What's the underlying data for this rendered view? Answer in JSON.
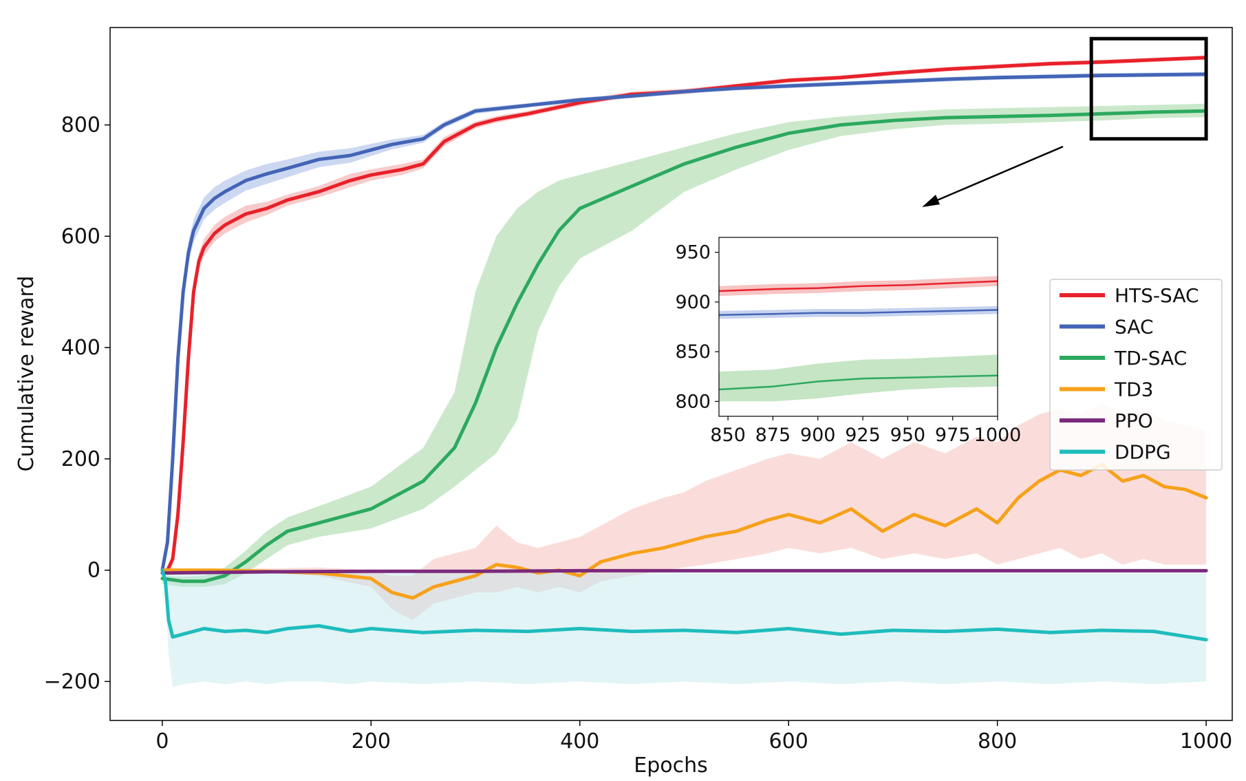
{
  "chart_data": {
    "type": "line",
    "title": "",
    "xlabel": "Epochs",
    "ylabel": "Cumulative reward",
    "xlim": [
      -50,
      1025
    ],
    "ylim": [
      -270,
      975
    ],
    "xticks": [
      0,
      200,
      400,
      600,
      800,
      1000
    ],
    "yticks": [
      -200,
      0,
      200,
      400,
      600,
      800
    ],
    "xtick_labels": [
      "0",
      "200",
      "400",
      "600",
      "800",
      "1000"
    ],
    "ytick_labels": [
      "−200",
      "0",
      "200",
      "400",
      "600",
      "800"
    ],
    "grid": false,
    "legend_position": "right",
    "series": [
      {
        "name": "HTS-SAC",
        "color": "#e8212a",
        "band_color": "#f08a8a",
        "x": [
          0,
          5,
          10,
          15,
          20,
          25,
          30,
          35,
          40,
          50,
          60,
          80,
          100,
          120,
          150,
          180,
          200,
          230,
          250,
          270,
          300,
          320,
          350,
          400,
          450,
          500,
          550,
          600,
          650,
          700,
          750,
          800,
          850,
          900,
          950,
          1000
        ],
        "y": [
          0,
          0,
          20,
          100,
          230,
          380,
          500,
          555,
          580,
          605,
          620,
          640,
          650,
          665,
          680,
          700,
          710,
          720,
          730,
          770,
          800,
          810,
          820,
          840,
          855,
          860,
          870,
          880,
          885,
          893,
          900,
          905,
          910,
          913,
          917,
          921
        ],
        "upper": [
          0,
          5,
          30,
          115,
          250,
          400,
          520,
          570,
          595,
          620,
          635,
          655,
          662,
          675,
          690,
          712,
          720,
          730,
          738,
          778,
          806,
          816,
          825,
          845,
          860,
          865,
          874,
          884,
          889,
          897,
          904,
          909,
          914,
          917,
          921,
          925
        ],
        "lower": [
          0,
          -5,
          10,
          85,
          210,
          360,
          480,
          540,
          565,
          590,
          605,
          625,
          638,
          655,
          670,
          688,
          700,
          710,
          722,
          762,
          794,
          804,
          815,
          835,
          850,
          855,
          866,
          876,
          881,
          889,
          896,
          901,
          906,
          909,
          913,
          917
        ]
      },
      {
        "name": "SAC",
        "color": "#4364b6",
        "band_color": "#8fa8df",
        "x": [
          0,
          5,
          10,
          15,
          20,
          25,
          30,
          35,
          40,
          50,
          60,
          80,
          100,
          120,
          150,
          180,
          200,
          220,
          250,
          270,
          300,
          350,
          400,
          450,
          500,
          550,
          600,
          650,
          700,
          750,
          800,
          850,
          900,
          950,
          1000
        ],
        "y": [
          0,
          50,
          200,
          380,
          500,
          570,
          610,
          630,
          650,
          668,
          680,
          700,
          712,
          722,
          738,
          745,
          755,
          765,
          775,
          800,
          825,
          835,
          845,
          852,
          860,
          866,
          870,
          874,
          878,
          882,
          885,
          887,
          889,
          890,
          891
        ],
        "upper": [
          0,
          60,
          220,
          400,
          520,
          590,
          630,
          650,
          670,
          688,
          700,
          718,
          730,
          738,
          752,
          758,
          766,
          774,
          782,
          806,
          830,
          839,
          849,
          856,
          864,
          870,
          874,
          878,
          882,
          886,
          889,
          891,
          893,
          894,
          895
        ],
        "lower": [
          0,
          40,
          180,
          360,
          480,
          550,
          590,
          610,
          630,
          648,
          660,
          682,
          694,
          706,
          724,
          732,
          744,
          756,
          768,
          794,
          820,
          831,
          841,
          848,
          856,
          862,
          866,
          870,
          874,
          878,
          881,
          883,
          885,
          886,
          887
        ]
      },
      {
        "name": "TD-SAC",
        "color": "#2ca95f",
        "band_color": "#8ccc8c",
        "x": [
          0,
          20,
          40,
          60,
          80,
          100,
          120,
          150,
          200,
          250,
          280,
          300,
          320,
          340,
          360,
          380,
          400,
          450,
          500,
          550,
          600,
          650,
          700,
          750,
          800,
          850,
          900,
          950,
          1000
        ],
        "y": [
          -15,
          -20,
          -20,
          -10,
          15,
          45,
          70,
          85,
          110,
          160,
          220,
          300,
          400,
          480,
          550,
          610,
          650,
          690,
          730,
          760,
          785,
          800,
          808,
          813,
          815,
          817,
          820,
          823,
          825
        ],
        "upper": [
          -10,
          -12,
          -10,
          5,
          35,
          70,
          95,
          115,
          150,
          220,
          320,
          500,
          600,
          650,
          680,
          700,
          710,
          735,
          760,
          785,
          805,
          815,
          822,
          828,
          830,
          832,
          834,
          836,
          838
        ],
        "lower": [
          -25,
          -30,
          -30,
          -25,
          -5,
          20,
          45,
          60,
          75,
          110,
          150,
          180,
          210,
          270,
          430,
          510,
          560,
          610,
          680,
          720,
          755,
          780,
          792,
          800,
          802,
          805,
          808,
          812,
          814
        ]
      },
      {
        "name": "TD3",
        "color": "#f7a11a",
        "band_color": "#f4b4ac",
        "x": [
          0,
          50,
          100,
          150,
          200,
          220,
          240,
          260,
          280,
          300,
          320,
          340,
          360,
          380,
          400,
          420,
          450,
          480,
          500,
          520,
          550,
          580,
          600,
          630,
          660,
          690,
          720,
          750,
          780,
          800,
          820,
          840,
          860,
          880,
          900,
          920,
          940,
          960,
          980,
          1000
        ],
        "y": [
          0,
          0,
          -2,
          -5,
          -15,
          -40,
          -50,
          -30,
          -20,
          -10,
          10,
          5,
          -5,
          0,
          -10,
          15,
          30,
          40,
          50,
          60,
          70,
          90,
          100,
          85,
          110,
          70,
          100,
          80,
          110,
          85,
          130,
          160,
          180,
          170,
          190,
          160,
          170,
          150,
          145,
          130
        ],
        "upper": [
          0,
          2,
          3,
          5,
          0,
          -10,
          -10,
          20,
          30,
          40,
          80,
          50,
          40,
          50,
          60,
          80,
          110,
          130,
          140,
          160,
          180,
          200,
          210,
          200,
          230,
          200,
          230,
          210,
          240,
          230,
          260,
          280,
          290,
          280,
          300,
          280,
          290,
          270,
          260,
          250
        ],
        "lower": [
          0,
          -2,
          -5,
          -10,
          -30,
          -70,
          -90,
          -60,
          -50,
          -40,
          -40,
          -30,
          -40,
          -30,
          -40,
          -20,
          -10,
          0,
          5,
          10,
          20,
          30,
          40,
          30,
          40,
          20,
          30,
          20,
          30,
          10,
          20,
          30,
          40,
          20,
          30,
          10,
          20,
          10,
          10,
          10
        ]
      },
      {
        "name": "PPO",
        "color": "#7b2a7c",
        "band_color": "#c9a3c9",
        "x": [
          0,
          100,
          200,
          300,
          400,
          500,
          600,
          700,
          800,
          900,
          1000
        ],
        "y": [
          -5,
          -3,
          -2,
          -2,
          -1,
          -1,
          -1,
          -1,
          -1,
          -1,
          -1
        ],
        "upper": [
          -3,
          -1,
          0,
          0,
          1,
          1,
          1,
          1,
          1,
          1,
          1
        ],
        "lower": [
          -7,
          -5,
          -4,
          -4,
          -3,
          -3,
          -3,
          -3,
          -3,
          -3,
          -3
        ]
      },
      {
        "name": "DDPG",
        "color": "#1fbcbc",
        "band_color": "#bfe6ea",
        "x": [
          0,
          3,
          6,
          10,
          20,
          40,
          60,
          80,
          100,
          120,
          150,
          180,
          200,
          250,
          300,
          350,
          400,
          450,
          500,
          550,
          600,
          650,
          700,
          750,
          800,
          850,
          900,
          950,
          1000
        ],
        "y": [
          0,
          -20,
          -90,
          -120,
          -115,
          -105,
          -110,
          -108,
          -112,
          -105,
          -100,
          -110,
          -105,
          -112,
          -108,
          -110,
          -105,
          -110,
          -108,
          -112,
          -105,
          -115,
          -108,
          -110,
          -106,
          -112,
          -108,
          -110,
          -125
        ],
        "upper": [
          0,
          0,
          -5,
          -8,
          -5,
          -5,
          -5,
          -5,
          -5,
          -5,
          -5,
          -5,
          -5,
          -5,
          -5,
          -5,
          -5,
          -5,
          -5,
          -5,
          -5,
          -5,
          -5,
          -5,
          -5,
          -5,
          -5,
          -5,
          -5
        ],
        "lower": [
          0,
          -40,
          -150,
          -210,
          -205,
          -200,
          -205,
          -200,
          -205,
          -200,
          -200,
          -205,
          -200,
          -205,
          -200,
          -205,
          -200,
          -205,
          -200,
          -205,
          -200,
          -205,
          -200,
          -205,
          -200,
          -205,
          -200,
          -205,
          -200
        ]
      }
    ],
    "highlight_box": {
      "x_range": [
        890,
        1000
      ],
      "y_range": [
        775,
        955
      ]
    },
    "inset": {
      "xlim": [
        845,
        1000
      ],
      "ylim": [
        785,
        965
      ],
      "xticks": [
        850,
        875,
        900,
        925,
        950,
        975,
        1000
      ],
      "yticks": [
        800,
        850,
        900,
        950
      ],
      "xtick_labels": [
        "850",
        "875",
        "900",
        "925",
        "950",
        "975",
        "1000"
      ],
      "ytick_labels": [
        "800",
        "850",
        "900",
        "950"
      ],
      "series": [
        {
          "name": "HTS-SAC",
          "color": "#e8212a",
          "band_color": "#f08a8a",
          "x": [
            845,
            875,
            900,
            925,
            950,
            975,
            1000
          ],
          "y": [
            911,
            913,
            914,
            916,
            917,
            919,
            921
          ],
          "upper": [
            916,
            918,
            919,
            921,
            922,
            924,
            926
          ],
          "lower": [
            906,
            908,
            909,
            911,
            912,
            914,
            916
          ]
        },
        {
          "name": "SAC",
          "color": "#4364b6",
          "band_color": "#8fa8df",
          "x": [
            845,
            875,
            900,
            925,
            950,
            975,
            1000
          ],
          "y": [
            887,
            888,
            889,
            889,
            890,
            891,
            892
          ],
          "upper": [
            891,
            892,
            893,
            893,
            894,
            895,
            896
          ],
          "lower": [
            883,
            884,
            885,
            885,
            886,
            887,
            888
          ]
        },
        {
          "name": "TD-SAC",
          "color": "#2ca95f",
          "band_color": "#8ccc8c",
          "x": [
            845,
            875,
            900,
            925,
            950,
            975,
            1000
          ],
          "y": [
            812,
            815,
            820,
            823,
            824,
            825,
            826
          ],
          "upper": [
            830,
            832,
            838,
            842,
            843,
            845,
            847
          ],
          "lower": [
            800,
            800,
            803,
            808,
            812,
            814,
            815
          ]
        }
      ]
    }
  }
}
